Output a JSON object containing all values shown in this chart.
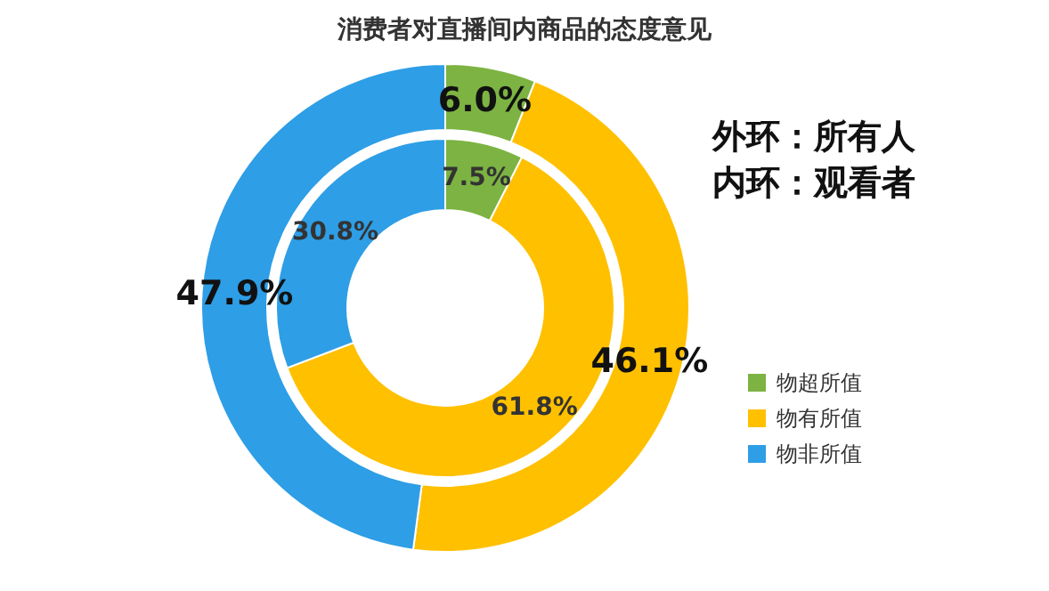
{
  "chart_data": {
    "type": "donut",
    "title": "消费者对直播间内商品的态度意见",
    "categories": [
      "物超所值",
      "物有所值",
      "物非所值"
    ],
    "colors": [
      "#7cb342",
      "#ffc000",
      "#2e9ee6"
    ],
    "series": [
      {
        "values": [
          6.0,
          46.1,
          47.9
        ],
        "value_labels": [
          "6.0%",
          "46.1%",
          "47.9%"
        ]
      },
      {
        "values": [
          7.5,
          61.8,
          30.8
        ],
        "value_labels": [
          "7.5%",
          "61.8%",
          "30.8%"
        ]
      }
    ],
    "annotations": [
      "外环：所有人",
      "内环：观看者"
    ],
    "legend": "right"
  }
}
